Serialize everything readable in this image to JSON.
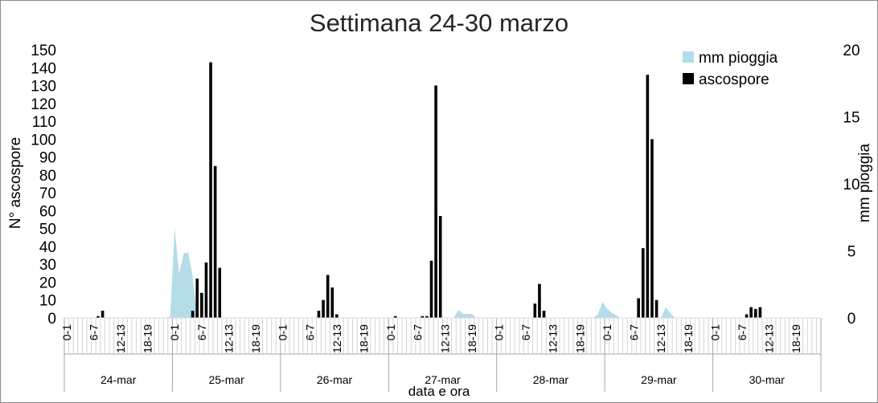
{
  "chart_data": {
    "type": "bar",
    "title": "Settimana 24-30 marzo",
    "xlabel": "data e ora",
    "ylabel": "N° ascospore",
    "y2label": "mm pioggia",
    "ylim": [
      0,
      150
    ],
    "y2lim": [
      0,
      20
    ],
    "y_ticks": [
      "0",
      "10",
      "20",
      "30",
      "40",
      "50",
      "60",
      "70",
      "80",
      "90",
      "100",
      "110",
      "120",
      "130",
      "140",
      "150"
    ],
    "y2_ticks": [
      "0",
      "5",
      "10",
      "15",
      "20"
    ],
    "days": [
      "24-mar",
      "25-mar",
      "26-mar",
      "27-mar",
      "28-mar",
      "29-mar",
      "30-mar"
    ],
    "hour_labels": [
      "0-1",
      "6-7",
      "12-13",
      "18-19"
    ],
    "legend": {
      "position": "top-right"
    },
    "colors": {
      "ascospore": "#000000",
      "rain": "#b5dde8"
    },
    "series": [
      {
        "name": "mm pioggia",
        "kind": "area",
        "axis": "right",
        "values": [
          0,
          0,
          0,
          0,
          0,
          0,
          0,
          0,
          0,
          0,
          0,
          0,
          0,
          0,
          0,
          0,
          0,
          0,
          0,
          0,
          0,
          0,
          0,
          0.1,
          6.7,
          3.3,
          4.8,
          4.9,
          3.1,
          0,
          0,
          0,
          0,
          0,
          0,
          0,
          0,
          0,
          0,
          0,
          0,
          0,
          0,
          0,
          0,
          0,
          0,
          0,
          0,
          0,
          0,
          0,
          0,
          0,
          0,
          0,
          0,
          0,
          0,
          0,
          0,
          0,
          0,
          0,
          0,
          0,
          0,
          0,
          0,
          0,
          0,
          0,
          0,
          0,
          0,
          0,
          0,
          0,
          0,
          0,
          0,
          0,
          0,
          0,
          0,
          0,
          0,
          0.6,
          0.3,
          0.3,
          0.3,
          0,
          0,
          0,
          0,
          0,
          0,
          0,
          0,
          0,
          0,
          0,
          0,
          0,
          0,
          0,
          0,
          0,
          0,
          0,
          0,
          0,
          0,
          0,
          0,
          0,
          0,
          0,
          0.3,
          1.2,
          0.7,
          0.4,
          0.2,
          0,
          0,
          0,
          0,
          0,
          0,
          0,
          0,
          0,
          0,
          0.8,
          0.4,
          0,
          0,
          0,
          0,
          0,
          0,
          0,
          0,
          0,
          0,
          0,
          0,
          0,
          0,
          0,
          0,
          0,
          0,
          0,
          0,
          0,
          0,
          0,
          0,
          0,
          0,
          0,
          0,
          0,
          0,
          0,
          0,
          0
        ]
      },
      {
        "name": "ascospore",
        "kind": "bar",
        "axis": "left",
        "values": [
          0,
          0,
          0,
          0,
          0,
          0,
          0,
          1,
          4,
          0,
          0,
          0,
          0,
          0,
          0,
          0,
          0,
          0,
          0,
          0,
          0,
          0,
          0,
          0,
          0,
          0,
          0,
          0,
          4,
          22,
          14,
          31,
          143,
          85,
          28,
          0,
          0,
          0,
          0,
          0,
          0,
          0,
          0,
          0,
          0,
          0,
          0,
          0,
          0,
          0,
          0,
          0,
          0,
          0,
          0,
          0,
          4,
          10,
          24,
          17,
          2,
          0,
          0,
          0,
          0,
          0,
          0,
          0,
          0,
          0,
          0,
          0,
          0,
          1,
          0,
          0,
          0,
          0,
          0,
          1,
          1,
          32,
          130,
          57,
          0,
          0,
          0,
          0,
          0,
          0,
          0,
          0,
          0,
          0,
          0,
          0,
          0,
          0,
          0,
          0,
          0,
          0,
          0,
          0,
          8,
          19,
          4,
          0,
          0,
          0,
          0,
          0,
          0,
          0,
          0,
          0,
          0,
          0,
          0,
          0,
          0,
          0,
          0,
          0,
          0,
          0,
          0,
          11,
          39,
          136,
          100,
          10,
          0,
          0,
          0,
          0,
          0,
          0,
          0,
          0,
          0,
          0,
          0,
          0,
          0,
          0,
          0,
          0,
          0,
          0,
          0,
          2,
          6,
          5,
          6,
          0,
          0,
          0,
          0,
          0,
          0,
          0,
          0,
          0,
          0,
          0,
          0,
          0
        ]
      }
    ]
  }
}
